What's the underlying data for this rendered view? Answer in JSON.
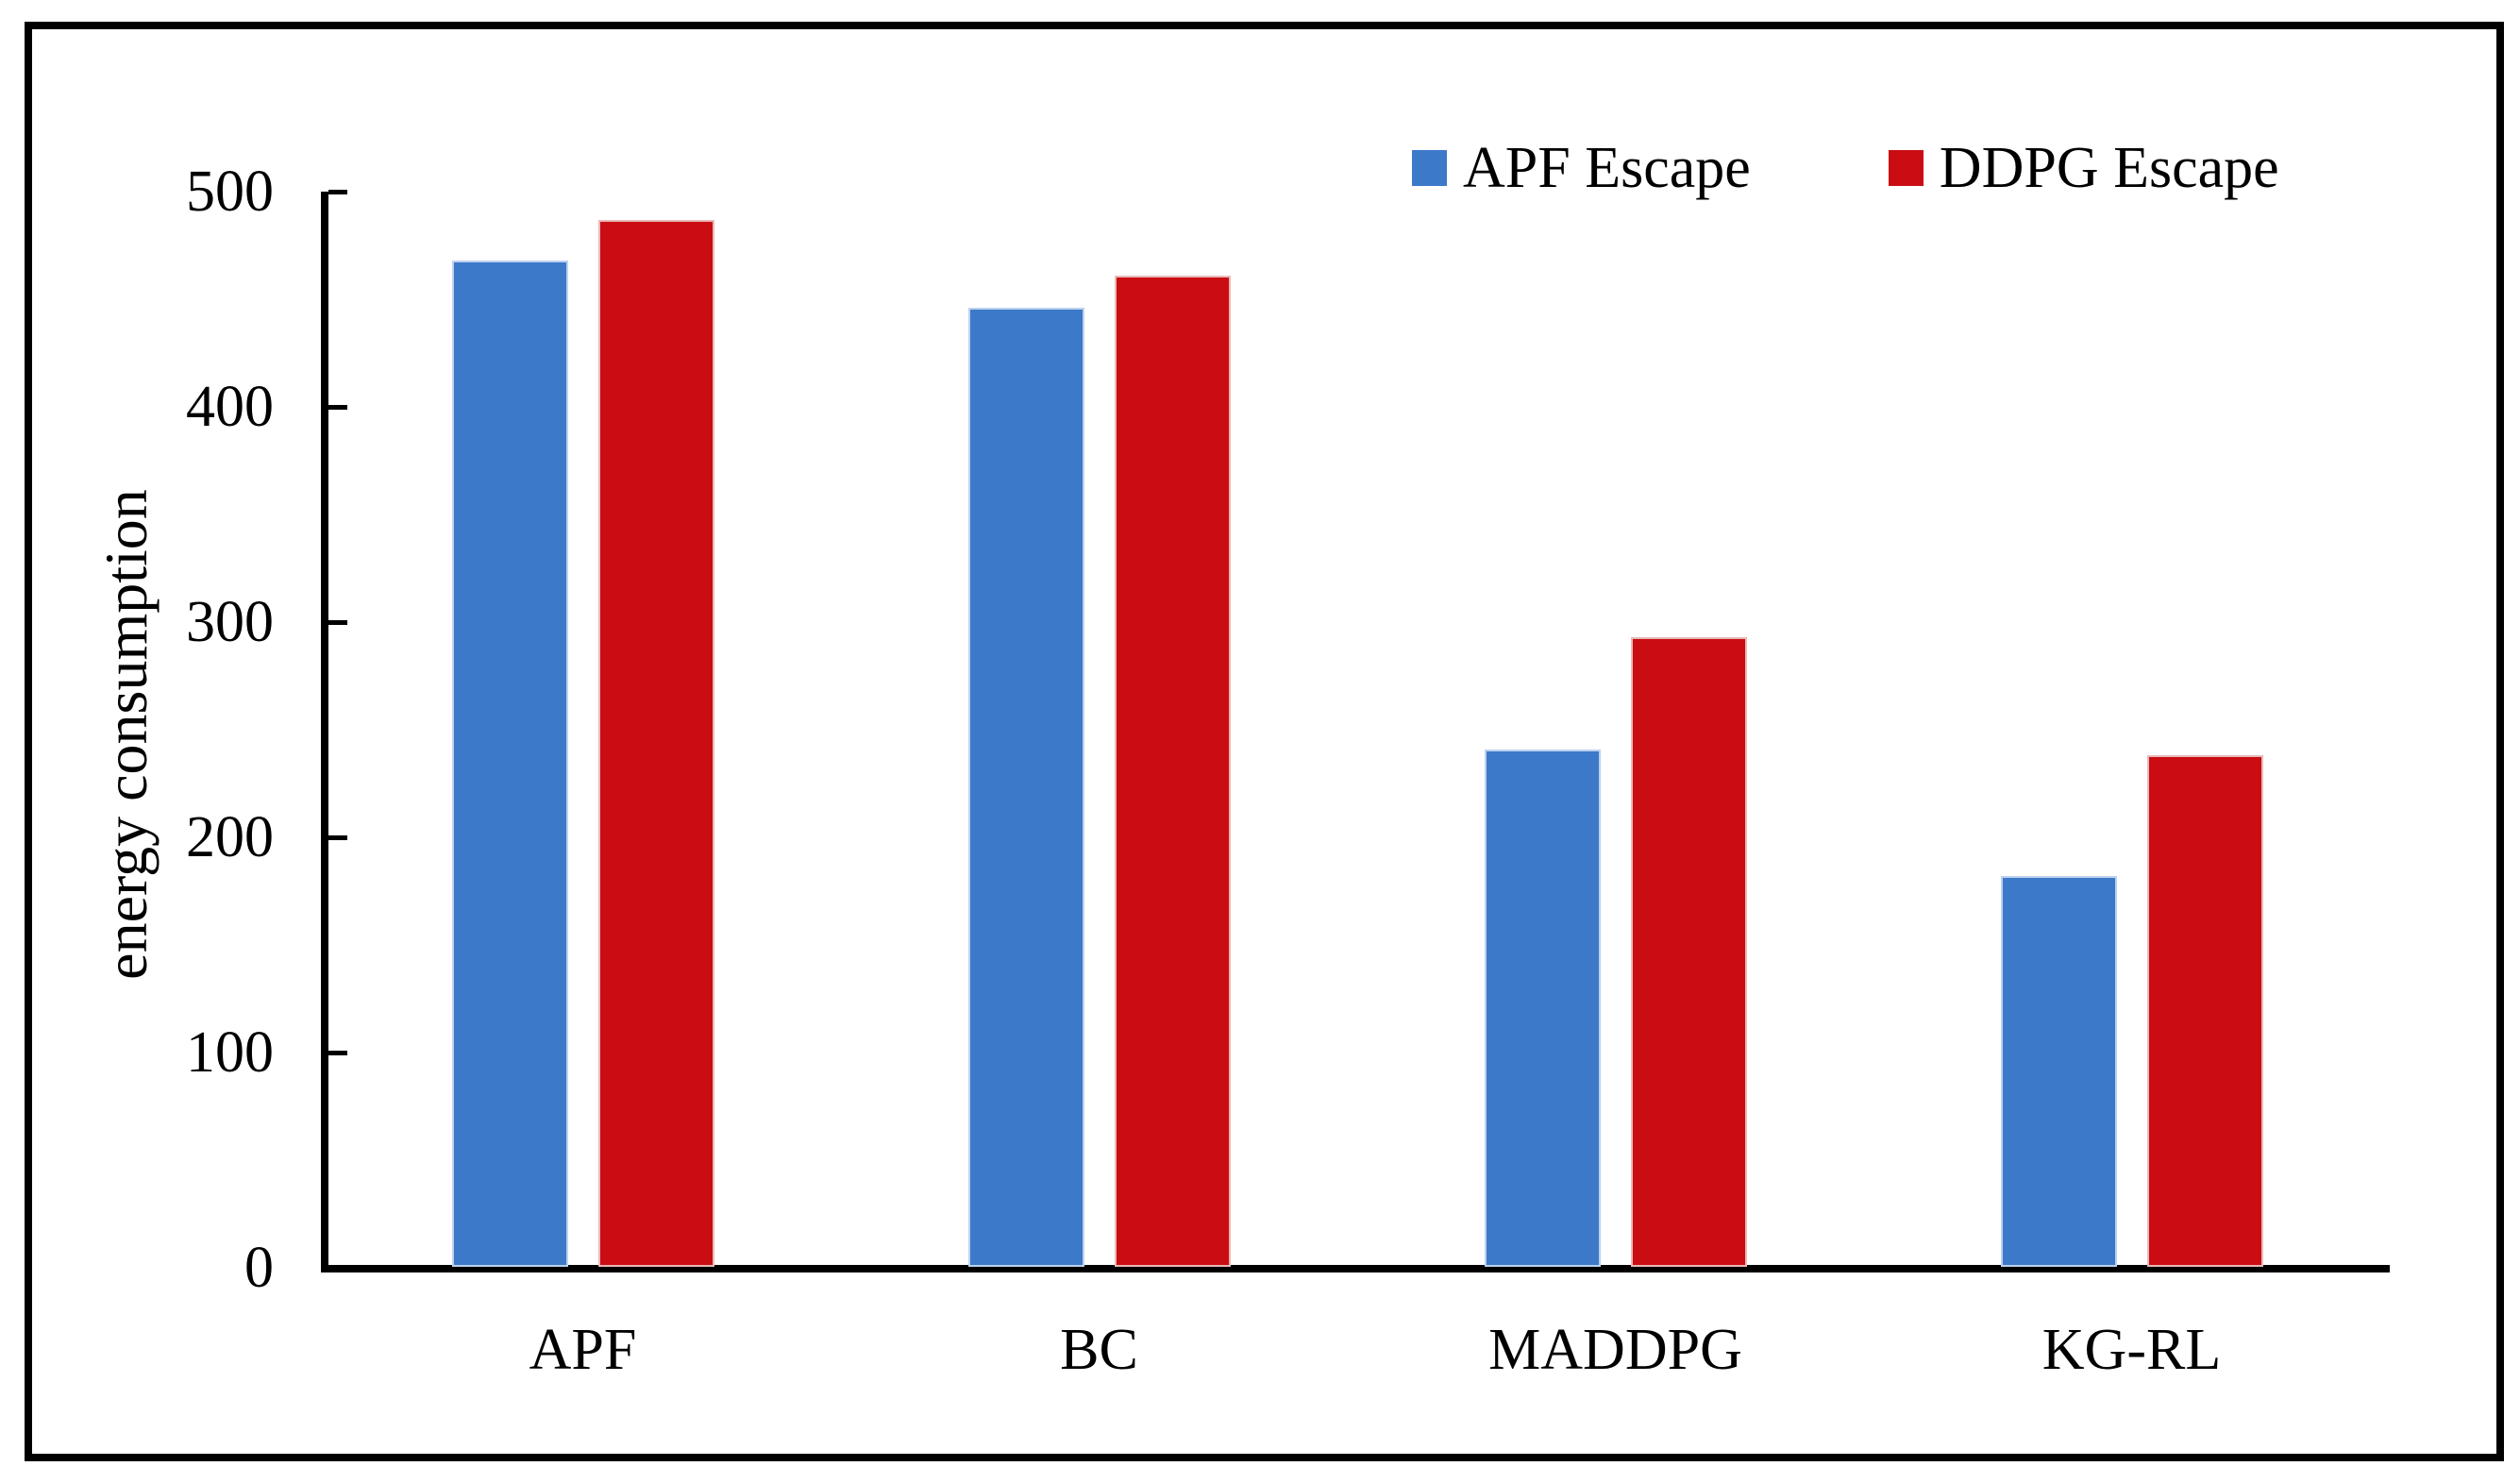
{
  "figure": {
    "background_color": "#FFFFFF",
    "frame_color": "#000000",
    "axis_color": "#000000",
    "text_color": "#000000"
  },
  "legend": {
    "entries": [
      {
        "label": "APF Escape",
        "swatch_color": "#3C79C9"
      },
      {
        "label": "DDPG Escape",
        "swatch_color": "#C90D12"
      }
    ]
  },
  "chart_data": {
    "type": "bar",
    "title": "",
    "categories": [
      "APF",
      "BC",
      "MADDPG",
      "KG-RL"
    ],
    "series": [
      {
        "name": "APF Escape",
        "color": "#3C79C9",
        "edge_color": "#BCD2EE",
        "values": [
          468,
          446,
          241,
          182
        ]
      },
      {
        "name": "DDPG Escape",
        "color": "#C90D12",
        "edge_color": "#E8B9B9",
        "values": [
          487,
          461,
          293,
          238
        ]
      }
    ],
    "xlabel": "",
    "ylabel": "energy consumption",
    "ylim": [
      0,
      500
    ],
    "yticks": [
      0,
      100,
      200,
      300,
      400,
      500
    ],
    "grid": false,
    "tick_direction": "in",
    "legend_position": "top-right"
  }
}
